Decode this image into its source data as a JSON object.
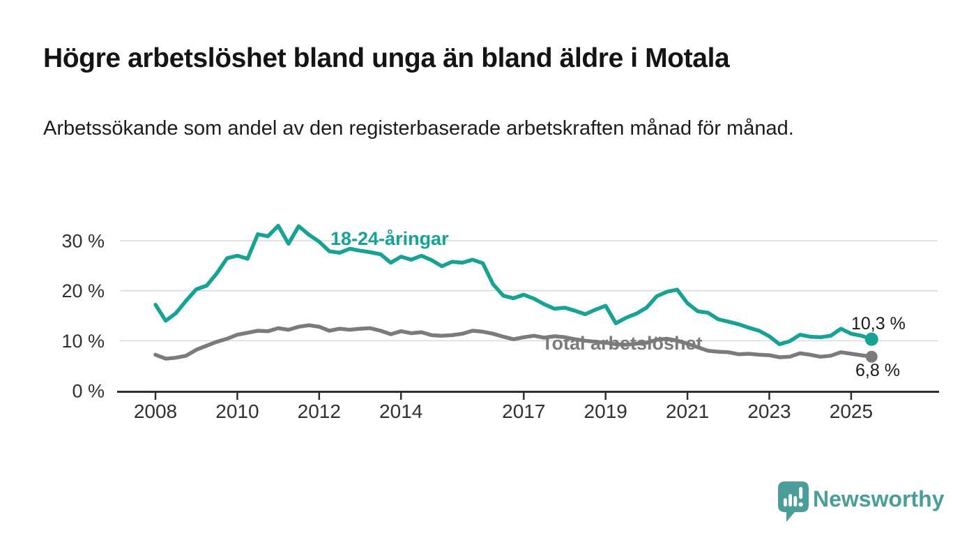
{
  "header": {
    "title": "Högre arbetslöshet bland unga än bland äldre i Motala",
    "subtitle": "Arbetssökande som andel av den registerbaserade arbetskraften månad för månad."
  },
  "footer": {
    "brand": "Newsworthy",
    "logo_icon": "bar-chart-speech-bubble-icon"
  },
  "colors": {
    "youth_line": "#17a296",
    "total_line": "#7b7b7b",
    "grid": "#d8d8d8",
    "axis": "#2f2f2f",
    "axis_text": "#303030",
    "value_text": "#1a1a1a",
    "brand": "#4a9e99",
    "background": "#ffffff"
  },
  "chart_data": {
    "type": "line",
    "title": "Högre arbetslöshet bland unga än bland äldre i Motala",
    "subtitle": "Arbetssökande som andel av den registerbaserade arbetskraften månad för månad.",
    "xlabel": "",
    "ylabel": "",
    "x_unit": "decimal_year",
    "x_start": 2008.0,
    "x_step": 0.25,
    "x_end": 2025.5,
    "xlim": [
      2007.1,
      2027.1
    ],
    "ylim": [
      0,
      34.5
    ],
    "grid": "horizontal-only",
    "legend_position": "inline-labels",
    "yticks": [
      {
        "value": 0,
        "label": "0 %"
      },
      {
        "value": 10,
        "label": "10 %"
      },
      {
        "value": 20,
        "label": "20 %"
      },
      {
        "value": 30,
        "label": "30 %"
      }
    ],
    "xticks": [
      {
        "value": 2008,
        "label": "2008"
      },
      {
        "value": 2010,
        "label": "2010"
      },
      {
        "value": 2012,
        "label": "2012"
      },
      {
        "value": 2014,
        "label": "2014"
      },
      {
        "value": 2017,
        "label": "2017"
      },
      {
        "value": 2019,
        "label": "2019"
      },
      {
        "value": 2021,
        "label": "2021"
      },
      {
        "value": 2023,
        "label": "2023"
      },
      {
        "value": 2025,
        "label": "2025"
      }
    ],
    "series": [
      {
        "name": "18-24-åringar",
        "color": "#17a296",
        "end_label": "10,3 %",
        "end_value": 10.3,
        "values": [
          17.2,
          14.0,
          15.5,
          18.0,
          20.3,
          21.0,
          23.5,
          26.5,
          27.0,
          26.4,
          31.3,
          30.9,
          33.0,
          29.4,
          32.9,
          31.2,
          29.8,
          27.9,
          27.6,
          28.4,
          28.0,
          27.7,
          27.3,
          25.6,
          26.8,
          26.2,
          27.0,
          26.1,
          24.9,
          25.8,
          25.6,
          26.2,
          25.5,
          21.3,
          19.0,
          18.5,
          19.2,
          18.4,
          17.3,
          16.4,
          16.6,
          16.0,
          15.3,
          16.2,
          17.0,
          13.5,
          14.6,
          15.4,
          16.6,
          18.9,
          19.8,
          20.2,
          17.5,
          15.9,
          15.6,
          14.3,
          13.8,
          13.3,
          12.6,
          12.0,
          10.9,
          9.3,
          9.9,
          11.2,
          10.8,
          10.7,
          11.0,
          12.4,
          11.4,
          11.0,
          10.3
        ]
      },
      {
        "name": "Total arbetslöshet",
        "color": "#7b7b7b",
        "end_label": "6,8 %",
        "end_value": 6.8,
        "values": [
          7.2,
          6.4,
          6.6,
          7.0,
          8.2,
          9.0,
          9.8,
          10.4,
          11.2,
          11.6,
          12.0,
          11.9,
          12.5,
          12.2,
          12.8,
          13.1,
          12.8,
          12.0,
          12.4,
          12.2,
          12.4,
          12.5,
          12.0,
          11.3,
          11.9,
          11.5,
          11.7,
          11.1,
          11.0,
          11.1,
          11.4,
          12.0,
          11.8,
          11.4,
          10.8,
          10.3,
          10.7,
          11.0,
          10.6,
          10.9,
          10.7,
          10.3,
          10.0,
          9.8,
          9.6,
          9.3,
          9.2,
          9.4,
          9.6,
          10.2,
          10.4,
          10.0,
          9.4,
          8.7,
          8.0,
          7.8,
          7.7,
          7.3,
          7.4,
          7.2,
          7.1,
          6.7,
          6.8,
          7.5,
          7.2,
          6.8,
          7.0,
          7.7,
          7.4,
          7.1,
          6.8
        ]
      }
    ]
  }
}
